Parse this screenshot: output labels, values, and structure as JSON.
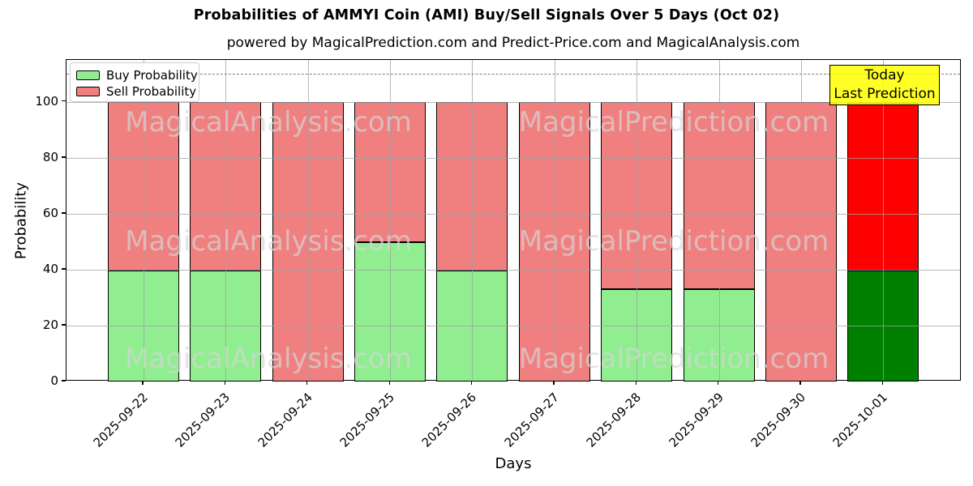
{
  "title": "Probabilities of AMMYI Coin (AMI) Buy/Sell Signals Over 5 Days (Oct 02)",
  "subtitle": "powered by MagicalPrediction.com and Predict-Price.com and MagicalAnalysis.com",
  "watermarks": {
    "left": "MagicalAnalysis.com",
    "right": "MagicalPrediction.com"
  },
  "annotation": {
    "line1": "Today",
    "line2": "Last Prediction"
  },
  "legend": {
    "items": [
      {
        "label": "Buy Probability",
        "color": "#90EE90"
      },
      {
        "label": "Sell Probability",
        "color": "#F08080"
      }
    ]
  },
  "axes": {
    "xlabel": "Days",
    "ylabel": "Probability",
    "yticks": [
      0,
      20,
      40,
      60,
      80,
      100
    ]
  },
  "chart_data": {
    "type": "bar",
    "stacked": true,
    "title": "Probabilities of AMMYI Coin (AMI) Buy/Sell Signals Over 5 Days (Oct 02)",
    "xlabel": "Days",
    "ylabel": "Probability",
    "ylim": [
      0,
      115
    ],
    "grid": true,
    "legend_position": "upper left",
    "dashed_reference_line_y": 110,
    "categories": [
      "2025-09-22",
      "2025-09-23",
      "2025-09-24",
      "2025-09-25",
      "2025-09-26",
      "2025-09-27",
      "2025-09-28",
      "2025-09-29",
      "2025-09-30",
      "2025-10-01"
    ],
    "series": [
      {
        "name": "Buy Probability",
        "values": [
          39.6,
          39.6,
          0,
          49.7,
          39.6,
          0,
          33,
          33,
          0,
          39.7
        ]
      },
      {
        "name": "Sell Probability",
        "values": [
          60.4,
          60.4,
          100,
          50.3,
          60.4,
          100,
          67,
          67,
          100,
          60.3
        ]
      }
    ],
    "colors": {
      "buy": "#90EE90",
      "sell": "#F08080",
      "buy_today": "#008000",
      "sell_today": "#FF0000",
      "grid": "#a0a0a0",
      "dashed_line": "#7d7d7d",
      "annotation_bg": "#FFFF00"
    },
    "today_index": 9
  }
}
